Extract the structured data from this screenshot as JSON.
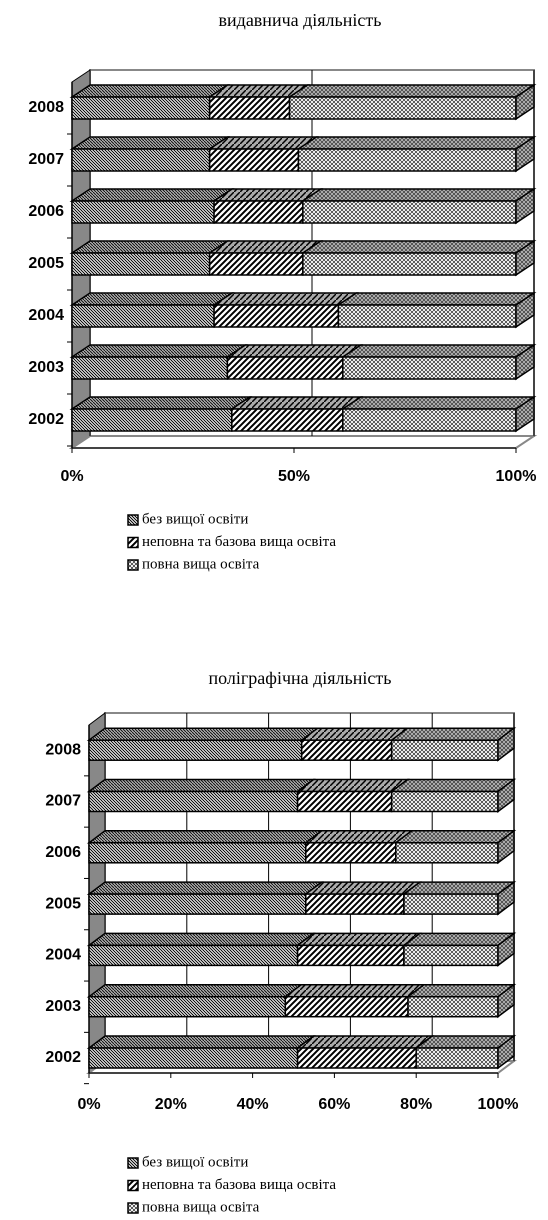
{
  "chart_data": [
    {
      "type": "bar",
      "title": "видавнича діяльність",
      "categories": [
        "2002",
        "2003",
        "2004",
        "2005",
        "2006",
        "2007",
        "2008"
      ],
      "series": [
        {
          "name": "без вищої освіти",
          "values": [
            36,
            35,
            32,
            31,
            32,
            31,
            31
          ]
        },
        {
          "name": "неповна та базова вища освіта",
          "values": [
            25,
            26,
            28,
            21,
            20,
            20,
            18
          ]
        },
        {
          "name": "повна вища освіта",
          "values": [
            39,
            39,
            40,
            48,
            48,
            49,
            51
          ]
        }
      ],
      "xlim": [
        0,
        100
      ],
      "xticks": [
        {
          "value": 0,
          "label": "0%"
        },
        {
          "value": 50,
          "label": "50%"
        },
        {
          "value": 100,
          "label": "100%"
        }
      ],
      "grid": true,
      "stacked": true,
      "legend": "bottom"
    },
    {
      "type": "bar",
      "title": "поліграфічна діяльність",
      "categories": [
        "2002",
        "2003",
        "2004",
        "2005",
        "2006",
        "2007",
        "2008"
      ],
      "series": [
        {
          "name": "без вищої освіти",
          "values": [
            51,
            48,
            51,
            53,
            53,
            51,
            52
          ]
        },
        {
          "name": "неповна та базова вища освіта",
          "values": [
            29,
            30,
            26,
            24,
            22,
            23,
            22
          ]
        },
        {
          "name": "повна вища освіта",
          "values": [
            20,
            22,
            23,
            23,
            25,
            26,
            26
          ]
        }
      ],
      "xlim": [
        0,
        100
      ],
      "xticks": [
        {
          "value": 0,
          "label": "0%"
        },
        {
          "value": 20,
          "label": "20%"
        },
        {
          "value": 40,
          "label": "40%"
        },
        {
          "value": 60,
          "label": "60%"
        },
        {
          "value": 80,
          "label": "80%"
        },
        {
          "value": 100,
          "label": "100%"
        }
      ],
      "grid": true,
      "stacked": true,
      "legend": "bottom"
    }
  ]
}
